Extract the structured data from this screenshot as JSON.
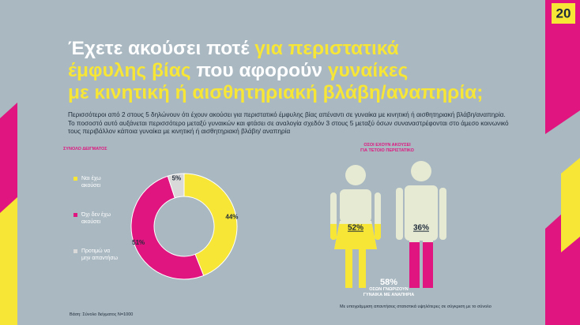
{
  "slide": {
    "page_number": "20",
    "title_lines": [
      [
        {
          "text": "Έχετε ακούσει ποτέ ",
          "color": "#ffffff"
        },
        {
          "text": "για περιστατικά",
          "color": "#f7e635"
        }
      ],
      [
        {
          "text": "έμφυλης βίας ",
          "color": "#f7e635"
        },
        {
          "text": "που αφορούν ",
          "color": "#ffffff"
        },
        {
          "text": "γυναίκες",
          "color": "#f7e635"
        }
      ],
      [
        {
          "text": "με κινητική ή αισθητηριακή βλάβη/αναπηρία;",
          "color": "#f7e635"
        }
      ]
    ],
    "body": "Περισσότεροι από 2 στους 5 δηλώνουν ότι έχουν ακούσει για περιστατικό έμφυλης βίας απέναντι σε γυναίκα με κινητική ή αισθητηριακή βλάβη/αναπηρία. Το ποσοστό αυτό αυξάνεται περισσότερο μεταξύ γυναικών και φτάσει σε αναλογία σχεδόν 3 στους 5 μεταξύ όσων συναναστρέφονται στο άμεσο κοινωνικό τους περιβάλλον κάποια γυναίκα με κινητική ή αισθητηριακή βλάβη/ αναπηρία",
    "base_note": "Βάση: Σύνολο δείγματος Ν=1000",
    "significance_note": "Με υπογράμμιση απαντήσεις στατιστικά υψηλότερες σε σύγκριση με το σύνολο"
  },
  "chart_data": [
    {
      "type": "donut",
      "subtitle": "ΣΥΝΟΛΟ ΔΕΙΓΜΑΤΟΣ",
      "categories": [
        "Ναι έχω ακούσει",
        "Όχι δεν έχω ακούσει",
        "Προτιμώ να μην απαντήσω"
      ],
      "values": [
        44,
        51,
        5
      ],
      "value_labels": [
        "44%",
        "51%",
        "5%"
      ],
      "colors": [
        "#f7e635",
        "#e0157f",
        "#d9d9d9"
      ]
    },
    {
      "type": "pictogram",
      "subtitle": "ΟΣΟΙ ΕΧΟΥΝ ΑΚΟΥΣΕΙ\nΓΙΑ ΤΕΤΟΙΟ ΠΕΡΙΣΤΑΤΙΚΟ",
      "categories": [
        null,
        null
      ],
      "values": [
        52,
        36
      ],
      "value_labels": [
        "52%",
        "36%"
      ],
      "colors": [
        "#f7e635",
        "#e0157f"
      ],
      "annotation": {
        "value": 58,
        "label": "58%",
        "text": "ΟΣΩΝ ΓΝΩΡΙΖΟΥΝ\nΓΥΝΑΙΚΑ ΜΕ ΑΝΑΠΗΡΙΑ"
      }
    }
  ]
}
